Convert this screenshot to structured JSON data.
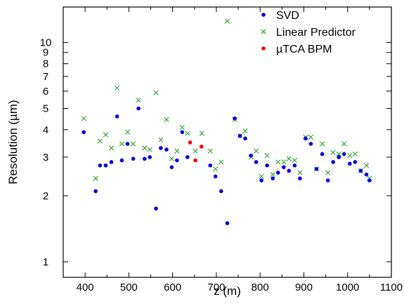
{
  "chart_data": {
    "type": "scatter",
    "title": "",
    "xlabel": "z  (m)",
    "ylabel": "Resolution  (µm)",
    "x_scale": "linear",
    "y_scale": "log",
    "xlim": [
      350,
      1100
    ],
    "ylim": [
      0.85,
      14.5
    ],
    "x_ticks": [
      {
        "value": 400,
        "label": "400"
      },
      {
        "value": 500,
        "label": "500"
      },
      {
        "value": 600,
        "label": "600"
      },
      {
        "value": 700,
        "label": "700"
      },
      {
        "value": 800,
        "label": "800"
      },
      {
        "value": 900,
        "label": "900"
      },
      {
        "value": 1000,
        "label": "1000"
      },
      {
        "value": 1100,
        "label": "1100"
      }
    ],
    "y_ticks": [
      {
        "value": 1,
        "label": "1"
      },
      {
        "value": 2,
        "label": "2"
      },
      {
        "value": 3,
        "label": "3"
      },
      {
        "value": 4,
        "label": "4"
      },
      {
        "value": 5,
        "label": "5"
      },
      {
        "value": 6,
        "label": "6"
      },
      {
        "value": 7,
        "label": "7"
      },
      {
        "value": 8,
        "label": "8"
      },
      {
        "value": 9,
        "label": "9"
      },
      {
        "value": 10,
        "label": "10"
      }
    ],
    "grid": false,
    "legend_position": "top-right",
    "series": [
      {
        "name": "SVD",
        "marker": "dot",
        "color": "#0000dd",
        "points": [
          [
            397,
            3.9
          ],
          [
            424,
            2.1
          ],
          [
            434,
            2.75
          ],
          [
            447,
            2.75
          ],
          [
            460,
            2.85
          ],
          [
            473,
            4.6
          ],
          [
            484,
            2.9
          ],
          [
            497,
            3.45
          ],
          [
            510,
            2.95
          ],
          [
            522,
            5.0
          ],
          [
            536,
            2.95
          ],
          [
            548,
            3.0
          ],
          [
            562,
            1.75
          ],
          [
            573,
            3.3
          ],
          [
            586,
            3.25
          ],
          [
            598,
            2.7
          ],
          [
            610,
            2.9
          ],
          [
            622,
            3.9
          ],
          [
            634,
            3.0
          ],
          [
            686,
            2.75
          ],
          [
            698,
            2.45
          ],
          [
            711,
            2.1
          ],
          [
            725,
            1.5
          ],
          [
            742,
            4.5
          ],
          [
            754,
            3.75
          ],
          [
            766,
            3.65
          ],
          [
            779,
            3.05
          ],
          [
            791,
            2.85
          ],
          [
            803,
            2.35
          ],
          [
            816,
            2.75
          ],
          [
            829,
            2.4
          ],
          [
            841,
            2.55
          ],
          [
            854,
            2.7
          ],
          [
            866,
            2.6
          ],
          [
            879,
            2.75
          ],
          [
            891,
            2.4
          ],
          [
            904,
            3.65
          ],
          [
            916,
            3.45
          ],
          [
            929,
            2.65
          ],
          [
            942,
            3.1
          ],
          [
            955,
            2.35
          ],
          [
            967,
            2.85
          ],
          [
            980,
            3.0
          ],
          [
            992,
            3.1
          ],
          [
            1005,
            2.8
          ],
          [
            1017,
            2.85
          ],
          [
            1030,
            2.6
          ],
          [
            1043,
            2.5
          ],
          [
            1050,
            2.35
          ]
        ]
      },
      {
        "name": "Linear Predictor",
        "marker": "x",
        "color": "#2aa02a",
        "points": [
          [
            397,
            4.5
          ],
          [
            424,
            2.4
          ],
          [
            434,
            3.55
          ],
          [
            447,
            3.8
          ],
          [
            460,
            3.3
          ],
          [
            473,
            6.2
          ],
          [
            484,
            3.45
          ],
          [
            497,
            3.9
          ],
          [
            510,
            3.45
          ],
          [
            522,
            5.45
          ],
          [
            536,
            3.3
          ],
          [
            548,
            3.25
          ],
          [
            562,
            5.9
          ],
          [
            573,
            3.6
          ],
          [
            586,
            4.45
          ],
          [
            598,
            2.95
          ],
          [
            610,
            3.2
          ],
          [
            622,
            4.1
          ],
          [
            634,
            3.85
          ],
          [
            652,
            3.2
          ],
          [
            667,
            3.85
          ],
          [
            686,
            3.2
          ],
          [
            698,
            2.65
          ],
          [
            711,
            2.85
          ],
          [
            725,
            12.5
          ],
          [
            742,
            4.45
          ],
          [
            754,
            3.75
          ],
          [
            766,
            3.95
          ],
          [
            779,
            3.0
          ],
          [
            791,
            3.2
          ],
          [
            803,
            2.45
          ],
          [
            816,
            3.05
          ],
          [
            829,
            2.5
          ],
          [
            841,
            2.85
          ],
          [
            854,
            2.85
          ],
          [
            866,
            2.95
          ],
          [
            879,
            2.9
          ],
          [
            891,
            2.55
          ],
          [
            904,
            3.7
          ],
          [
            916,
            3.7
          ],
          [
            929,
            2.65
          ],
          [
            942,
            3.45
          ],
          [
            955,
            2.55
          ],
          [
            967,
            3.15
          ],
          [
            980,
            3.1
          ],
          [
            992,
            3.45
          ],
          [
            1005,
            3.05
          ],
          [
            1017,
            3.1
          ],
          [
            1030,
            2.6
          ],
          [
            1043,
            2.75
          ],
          [
            1050,
            2.4
          ]
        ]
      },
      {
        "name": "µTCA BPM",
        "marker": "dot",
        "color": "#ff0000",
        "points": [
          [
            640,
            3.5
          ],
          [
            652,
            2.9
          ],
          [
            666,
            3.35
          ]
        ]
      }
    ]
  }
}
